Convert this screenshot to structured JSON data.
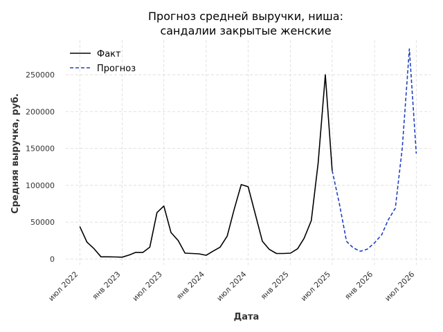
{
  "chart_data": {
    "type": "line",
    "title_lines": [
      "Прогноз средней выручки, ниша:",
      "сандалии закрытые женские"
    ],
    "xlabel": "Дата",
    "ylabel": "Средняя выручка, руб.",
    "x_ticks": [
      {
        "date": "2022-07-01",
        "label": "июл 2022"
      },
      {
        "date": "2023-01-01",
        "label": "янв 2023"
      },
      {
        "date": "2023-07-01",
        "label": "июл 2023"
      },
      {
        "date": "2024-01-01",
        "label": "янв 2024"
      },
      {
        "date": "2024-07-01",
        "label": "июл 2024"
      },
      {
        "date": "2025-01-01",
        "label": "янв 2025"
      },
      {
        "date": "2025-07-01",
        "label": "июл 2025"
      },
      {
        "date": "2026-01-01",
        "label": "янв 2026"
      },
      {
        "date": "2026-07-01",
        "label": "июл 2026"
      }
    ],
    "y_ticks": [
      0,
      50000,
      100000,
      150000,
      200000,
      250000
    ],
    "xlim": [
      "2022-05-01",
      "2026-09-01"
    ],
    "ylim": [
      -8000,
      297000
    ],
    "grid": true,
    "legend_position": "top-left",
    "series": [
      {
        "name": "Факт",
        "color": "#000000",
        "style": "solid",
        "points": [
          [
            "2022-07-01",
            44000
          ],
          [
            "2022-08-01",
            23000
          ],
          [
            "2022-09-01",
            14000
          ],
          [
            "2022-10-01",
            3000
          ],
          [
            "2022-11-01",
            3000
          ],
          [
            "2022-12-01",
            2800
          ],
          [
            "2023-01-01",
            2500
          ],
          [
            "2023-02-01",
            5500
          ],
          [
            "2023-03-01",
            9000
          ],
          [
            "2023-04-01",
            9000
          ],
          [
            "2023-05-01",
            16000
          ],
          [
            "2023-06-01",
            63000
          ],
          [
            "2023-07-01",
            72000
          ],
          [
            "2023-08-01",
            36000
          ],
          [
            "2023-09-01",
            25000
          ],
          [
            "2023-10-01",
            8000
          ],
          [
            "2023-11-01",
            7500
          ],
          [
            "2023-12-01",
            7000
          ],
          [
            "2024-01-01",
            5000
          ],
          [
            "2024-02-01",
            11000
          ],
          [
            "2024-03-01",
            16000
          ],
          [
            "2024-04-01",
            31000
          ],
          [
            "2024-05-01",
            67000
          ],
          [
            "2024-06-01",
            101000
          ],
          [
            "2024-07-01",
            98000
          ],
          [
            "2024-08-01",
            61000
          ],
          [
            "2024-09-01",
            24000
          ],
          [
            "2024-10-01",
            13000
          ],
          [
            "2024-11-01",
            7500
          ],
          [
            "2024-12-01",
            7500
          ],
          [
            "2025-01-01",
            8000
          ],
          [
            "2025-02-01",
            14000
          ],
          [
            "2025-03-01",
            28000
          ],
          [
            "2025-04-01",
            52000
          ],
          [
            "2025-05-01",
            130000
          ],
          [
            "2025-06-01",
            250000
          ],
          [
            "2025-07-01",
            120000
          ]
        ]
      },
      {
        "name": "Прогноз",
        "color": "#1f3fbf",
        "style": "dashed",
        "points": [
          [
            "2025-07-01",
            120000
          ],
          [
            "2025-08-01",
            75000
          ],
          [
            "2025-09-01",
            24000
          ],
          [
            "2025-10-01",
            15000
          ],
          [
            "2025-11-01",
            10500
          ],
          [
            "2025-12-01",
            13500
          ],
          [
            "2026-01-01",
            22000
          ],
          [
            "2026-02-01",
            33000
          ],
          [
            "2026-03-01",
            53000
          ],
          [
            "2026-04-01",
            69000
          ],
          [
            "2026-05-01",
            150000
          ],
          [
            "2026-06-01",
            285000
          ],
          [
            "2026-07-01",
            143000
          ]
        ]
      }
    ]
  }
}
